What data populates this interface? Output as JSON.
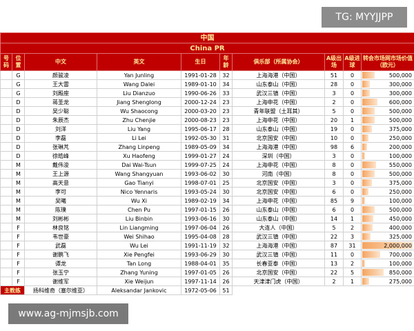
{
  "watermark_top": "TG: MYYJJPP",
  "watermark_bottom": "www.ag-mjmsjb.com",
  "table": {
    "title_cn": "中国",
    "title_en": "China PR",
    "columns": [
      "号码",
      "位置",
      "中文",
      "英文",
      "生日",
      "年龄",
      "俱乐部（所属协会）",
      "A级出场",
      "A级进球",
      "转会市场网市场价值（欧元）"
    ],
    "rows": [
      {
        "pos": "G",
        "cn": "颜骏凌",
        "en": "Yan Junling",
        "birth": "1991-01-28",
        "age": 32,
        "club": "上海海港（中国）",
        "caps": 51,
        "goals": 0,
        "value": 500000,
        "value_label": "500,000"
      },
      {
        "pos": "G",
        "cn": "王大雷",
        "en": "Wang Dalei",
        "birth": "1989-01-10",
        "age": 34,
        "club": "山东泰山（中国）",
        "caps": 28,
        "goals": 0,
        "value": 300000,
        "value_label": "300,000"
      },
      {
        "pos": "G",
        "cn": "刘殿座",
        "en": "Liu Dianzuo",
        "birth": "1990-06-26",
        "age": 33,
        "club": "武汉三镇（中国）",
        "caps": 3,
        "goals": 0,
        "value": 300000,
        "value_label": "300,000"
      },
      {
        "pos": "D",
        "cn": "蒋圣龙",
        "en": "Jiang Shenglong",
        "birth": "2000-12-24",
        "age": 23,
        "club": "上海申花（中国）",
        "caps": 2,
        "goals": 0,
        "value": 600000,
        "value_label": "600,000"
      },
      {
        "pos": "D",
        "cn": "吴少聪",
        "en": "Wu Shaocong",
        "birth": "2000-03-20",
        "age": 23,
        "club": "青年联盟（土耳其）",
        "caps": 5,
        "goals": 0,
        "value": 500000,
        "value_label": "500,000"
      },
      {
        "pos": "D",
        "cn": "朱辰杰",
        "en": "Zhu Chenjie",
        "birth": "2000-08-23",
        "age": 23,
        "club": "上海申花（中国）",
        "caps": 20,
        "goals": 1,
        "value": 500000,
        "value_label": "500,000"
      },
      {
        "pos": "D",
        "cn": "刘洋",
        "en": "Liu Yang",
        "birth": "1995-06-17",
        "age": 28,
        "club": "山东泰山（中国）",
        "caps": 19,
        "goals": 0,
        "value": 375000,
        "value_label": "375,000"
      },
      {
        "pos": "D",
        "cn": "李磊",
        "en": "Li Lei",
        "birth": "1992-05-30",
        "age": 31,
        "club": "北京国安（中国）",
        "caps": 10,
        "goals": 0,
        "value": 250000,
        "value_label": "250,000"
      },
      {
        "pos": "D",
        "cn": "张琳芃",
        "en": "Zhang Linpeng",
        "birth": "1989-05-09",
        "age": 34,
        "club": "上海海港（中国）",
        "caps": 98,
        "goals": 6,
        "value": 200000,
        "value_label": "200,000"
      },
      {
        "pos": "D",
        "cn": "徐皓峰",
        "en": "Xu Haofeng",
        "birth": "1999-01-27",
        "age": 24,
        "club": "深圳（中国）",
        "caps": 3,
        "goals": 0,
        "value": 100000,
        "value_label": "100,000"
      },
      {
        "pos": "M",
        "cn": "戴伟浚",
        "en": "Dai Wai-Tsun",
        "birth": "1999-07-25",
        "age": 24,
        "club": "上海申花（中国）",
        "caps": 8,
        "goals": 0,
        "value": 550000,
        "value_label": "550,000"
      },
      {
        "pos": "M",
        "cn": "王上源",
        "en": "Wang Shangyuan",
        "birth": "1993-06-02",
        "age": 30,
        "club": "河南（中国）",
        "caps": 8,
        "goals": 0,
        "value": 500000,
        "value_label": "500,000"
      },
      {
        "pos": "M",
        "cn": "高天意",
        "en": "Gao Tianyi",
        "birth": "1998-07-01",
        "age": 25,
        "club": "北京国安（中国）",
        "caps": 3,
        "goals": 0,
        "value": 375000,
        "value_label": "375,000"
      },
      {
        "pos": "M",
        "cn": "李可",
        "en": "Nico Yennaris",
        "birth": "1993-05-24",
        "age": 30,
        "club": "北京国安（中国）",
        "caps": 6,
        "goals": 0,
        "value": 250000,
        "value_label": "250,000"
      },
      {
        "pos": "M",
        "cn": "吴曦",
        "en": "Wu Xi",
        "birth": "1989-02-19",
        "age": 34,
        "club": "上海申花（中国）",
        "caps": 85,
        "goals": 9,
        "value": 100000,
        "value_label": "100,000"
      },
      {
        "pos": "M",
        "cn": "陈璞",
        "en": "Chen Pu",
        "birth": "1997-01-15",
        "age": 26,
        "club": "山东泰山（中国）",
        "caps": 6,
        "goals": 0,
        "value": 500000,
        "value_label": "500,000"
      },
      {
        "pos": "M",
        "cn": "刘彬彬",
        "en": "Liu Binbin",
        "birth": "1993-06-16",
        "age": 30,
        "club": "山东泰山（中国）",
        "caps": 14,
        "goals": 1,
        "value": 450000,
        "value_label": "450,000"
      },
      {
        "pos": "F",
        "cn": "林良铭",
        "en": "Lin Liangming",
        "birth": "1997-06-04",
        "age": 26,
        "club": "大连人（中国）",
        "caps": 5,
        "goals": 2,
        "value": 400000,
        "value_label": "400,000"
      },
      {
        "pos": "F",
        "cn": "韦世豪",
        "en": "Wei Shihao",
        "birth": "1995-04-08",
        "age": 28,
        "club": "武汉三镇（中国）",
        "caps": 22,
        "goals": 3,
        "value": 325000,
        "value_label": "325,000"
      },
      {
        "pos": "F",
        "cn": "武磊",
        "en": "Wu Lei",
        "birth": "1991-11-19",
        "age": 32,
        "club": "上海海港（中国）",
        "caps": 87,
        "goals": 31,
        "value": 2000000,
        "value_label": "2,000,000"
      },
      {
        "pos": "F",
        "cn": "谢鹏飞",
        "en": "Xie Pengfei",
        "birth": "1993-06-29",
        "age": 30,
        "club": "武汉三镇（中国）",
        "caps": 11,
        "goals": 0,
        "value": 700000,
        "value_label": "700,000"
      },
      {
        "pos": "F",
        "cn": "谭龙",
        "en": "Tan Long",
        "birth": "1988-04-01",
        "age": 35,
        "club": "长春亚泰（中国）",
        "caps": 13,
        "goals": 2,
        "value": 100000,
        "value_label": "100,000"
      },
      {
        "pos": "F",
        "cn": "张玉宁",
        "en": "Zhang Yuning",
        "birth": "1997-01-05",
        "age": 26,
        "club": "北京国安（中国）",
        "caps": 22,
        "goals": 5,
        "value": 850000,
        "value_label": "850,000"
      },
      {
        "pos": "F",
        "cn": "谢维军",
        "en": "Xie Weijun",
        "birth": "1997-11-14",
        "age": 26,
        "club": "天津津门虎（中国）",
        "caps": 2,
        "goals": 1,
        "value": 275000,
        "value_label": "275,000"
      }
    ],
    "coach": {
      "role": "主教练",
      "cn": "扬科维奇（塞尔维亚）",
      "en": "Aleksandar Jankovic",
      "birth": "1972-05-06",
      "age": 51
    }
  }
}
